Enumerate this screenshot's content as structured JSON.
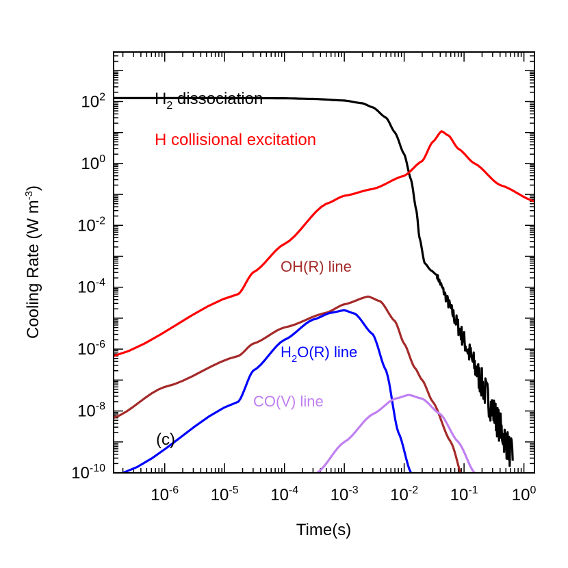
{
  "chart_data": {
    "type": "line",
    "panel_label": "(c)",
    "xlabel": "Time(s)",
    "ylabel": "Cooling Rate (W m",
    "ylabel_sup": "-3",
    "ylabel_close": ")",
    "x_scale": "log",
    "y_scale": "log",
    "xlim": [
      1.4e-07,
      1.5
    ],
    "ylim": [
      1e-10,
      4000
    ],
    "x_ticks": [
      {
        "exp": -6,
        "label": "10",
        "sup": "-6"
      },
      {
        "exp": -5,
        "label": "10",
        "sup": "-5"
      },
      {
        "exp": -4,
        "label": "10",
        "sup": "-4"
      },
      {
        "exp": -3,
        "label": "10",
        "sup": "-3"
      },
      {
        "exp": -2,
        "label": "10",
        "sup": "-2"
      },
      {
        "exp": -1,
        "label": "10",
        "sup": "-1"
      },
      {
        "exp": 0,
        "label": "10",
        "sup": "0"
      }
    ],
    "y_ticks": [
      {
        "exp": 2,
        "label": "10",
        "sup": "2"
      },
      {
        "exp": 0,
        "label": "10",
        "sup": "0"
      },
      {
        "exp": -2,
        "label": "10",
        "sup": "-2"
      },
      {
        "exp": -4,
        "label": "10",
        "sup": "-4"
      },
      {
        "exp": -6,
        "label": "10",
        "sup": "-6"
      },
      {
        "exp": -8,
        "label": "10",
        "sup": "-8"
      },
      {
        "exp": -10,
        "label": "10",
        "sup": "-10"
      }
    ],
    "series": [
      {
        "key": "h2",
        "label_main": "H",
        "label_sub": "2",
        "label_rest": " dissociation",
        "color": "#000000",
        "points": [
          [
            1.4e-07,
            130
          ],
          [
            1e-06,
            130
          ],
          [
            1e-05,
            130
          ],
          [
            0.0001,
            128
          ],
          [
            0.0003,
            122
          ],
          [
            0.001,
            108
          ],
          [
            0.002,
            88
          ],
          [
            0.003,
            65
          ],
          [
            0.005,
            30
          ],
          [
            0.007,
            10
          ],
          [
            0.01,
            2
          ],
          [
            0.013,
            0.3
          ],
          [
            0.016,
            0.03
          ],
          [
            0.018,
            0.004
          ],
          [
            0.022,
            0.0006
          ],
          [
            0.028,
            0.00035
          ],
          [
            0.035,
            0.00025
          ]
        ],
        "noisy_tail": {
          "x_start": 0.035,
          "x_end": 0.65,
          "y_start": 0.00025,
          "y_end": 3e-10
        }
      },
      {
        "key": "h",
        "label_main": "H collisional excitation",
        "color": "#ff0000",
        "points": [
          [
            1.4e-07,
            6e-07
          ],
          [
            1.7e-05,
            6e-05
          ],
          [
            3e-05,
            0.0003
          ],
          [
            0.0001,
            0.0025
          ],
          [
            0.0005,
            0.05
          ],
          [
            0.001,
            0.09
          ],
          [
            0.003,
            0.15
          ],
          [
            0.01,
            0.4
          ],
          [
            0.02,
            1.2
          ],
          [
            0.03,
            5
          ],
          [
            0.042,
            11
          ],
          [
            0.055,
            8
          ],
          [
            0.08,
            3
          ],
          [
            0.15,
            1
          ],
          [
            0.4,
            0.2
          ],
          [
            1.5,
            0.06
          ]
        ]
      },
      {
        "key": "oh",
        "label_main": "OH(R) line",
        "color": "#a52a2a",
        "points": [
          [
            1.4e-07,
            6e-09
          ],
          [
            1e-06,
            6e-08
          ],
          [
            1.7e-05,
            6e-07
          ],
          [
            3e-05,
            1.5e-06
          ],
          [
            0.0001,
            5e-06
          ],
          [
            0.0005,
            1.5e-05
          ],
          [
            0.001,
            2.8e-05
          ],
          [
            0.0025,
            5e-05
          ],
          [
            0.004,
            3.5e-05
          ],
          [
            0.007,
            8e-06
          ],
          [
            0.01,
            1.5e-06
          ],
          [
            0.015,
            2.5e-07
          ],
          [
            0.02,
            1e-07
          ],
          [
            0.03,
            2e-08
          ],
          [
            0.06,
            1e-09
          ],
          [
            0.1,
            5e-11
          ]
        ]
      },
      {
        "key": "h2o",
        "label_main": "H",
        "label_sub": "2",
        "label_rest": "O(R) line",
        "color": "#0000ff",
        "points": [
          [
            2e-07,
            1e-10
          ],
          [
            1.7e-05,
            2e-08
          ],
          [
            3e-05,
            2e-07
          ],
          [
            0.0001,
            2e-06
          ],
          [
            0.0003,
            9e-06
          ],
          [
            0.0006,
            1.5e-05
          ],
          [
            0.001,
            1.8e-05
          ],
          [
            0.0015,
            1.4e-05
          ],
          [
            0.003,
            3e-06
          ],
          [
            0.005,
            2e-07
          ],
          [
            0.008,
            2e-09
          ],
          [
            0.013,
            1e-10
          ]
        ]
      },
      {
        "key": "co",
        "label_main": "CO(V) line",
        "color": "#c080f0",
        "points": [
          [
            0.00035,
            1e-10
          ],
          [
            0.001,
            1e-09
          ],
          [
            0.003,
            8e-09
          ],
          [
            0.007,
            2.5e-08
          ],
          [
            0.012,
            3.3e-08
          ],
          [
            0.02,
            2.5e-08
          ],
          [
            0.04,
            8e-09
          ],
          [
            0.08,
            1e-09
          ],
          [
            0.15,
            1e-10
          ]
        ]
      }
    ]
  }
}
